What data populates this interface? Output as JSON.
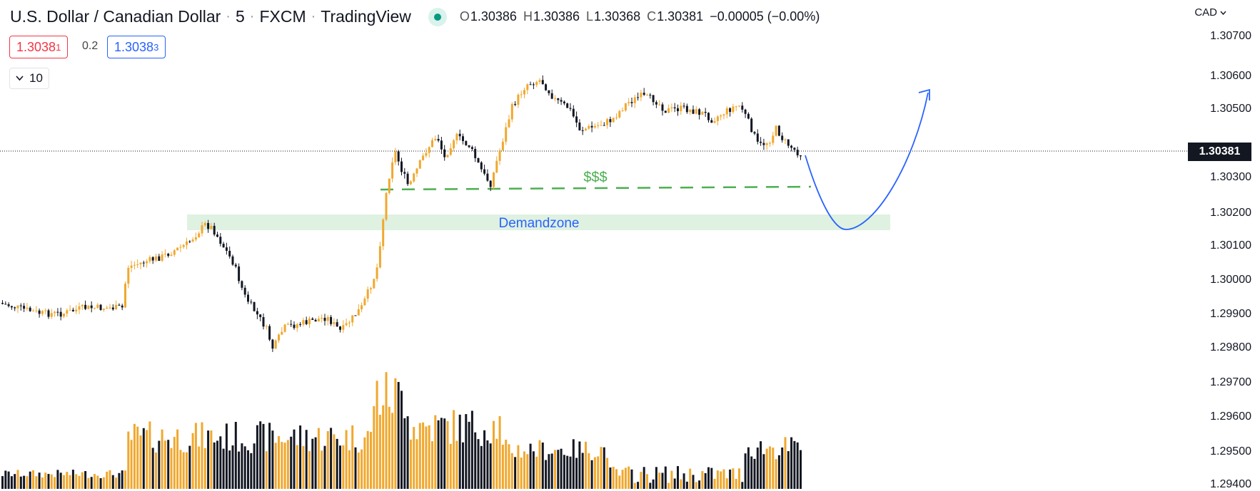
{
  "header": {
    "symbol": "U.S. Dollar / Canadian Dollar",
    "interval": "5",
    "exchange": "FXCM",
    "source": "TradingView",
    "ohlc": {
      "o_label": "O",
      "o": "1.30386",
      "h_label": "H",
      "h": "1.30386",
      "l_label": "L",
      "l": "1.30368",
      "c_label": "C",
      "c": "1.30381",
      "change": "−0.00005 (−0.00%)"
    }
  },
  "trade": {
    "sell_main": "1.3038",
    "sell_pip": "1",
    "spread": "0.2",
    "buy_main": "1.3038",
    "buy_pip": "3",
    "quantity": "10"
  },
  "price_axis": {
    "currency": "CAD",
    "labels": [
      "1.30700",
      "1.30600",
      "1.30500",
      "1.30300",
      "1.30200",
      "1.30100",
      "1.30000",
      "1.29900",
      "1.29800",
      "1.29700",
      "1.29600",
      "1.29500",
      "1.29400"
    ],
    "current_price": "1.30381"
  },
  "annotations": {
    "liquidity_label": "$$$",
    "zone_label": "Demandzone"
  },
  "colors": {
    "bull": "#f0a82e",
    "bear": "#131722",
    "zone": "#dff1e1",
    "liquidity": "#4caf50",
    "projection": "#2962ff"
  }
}
